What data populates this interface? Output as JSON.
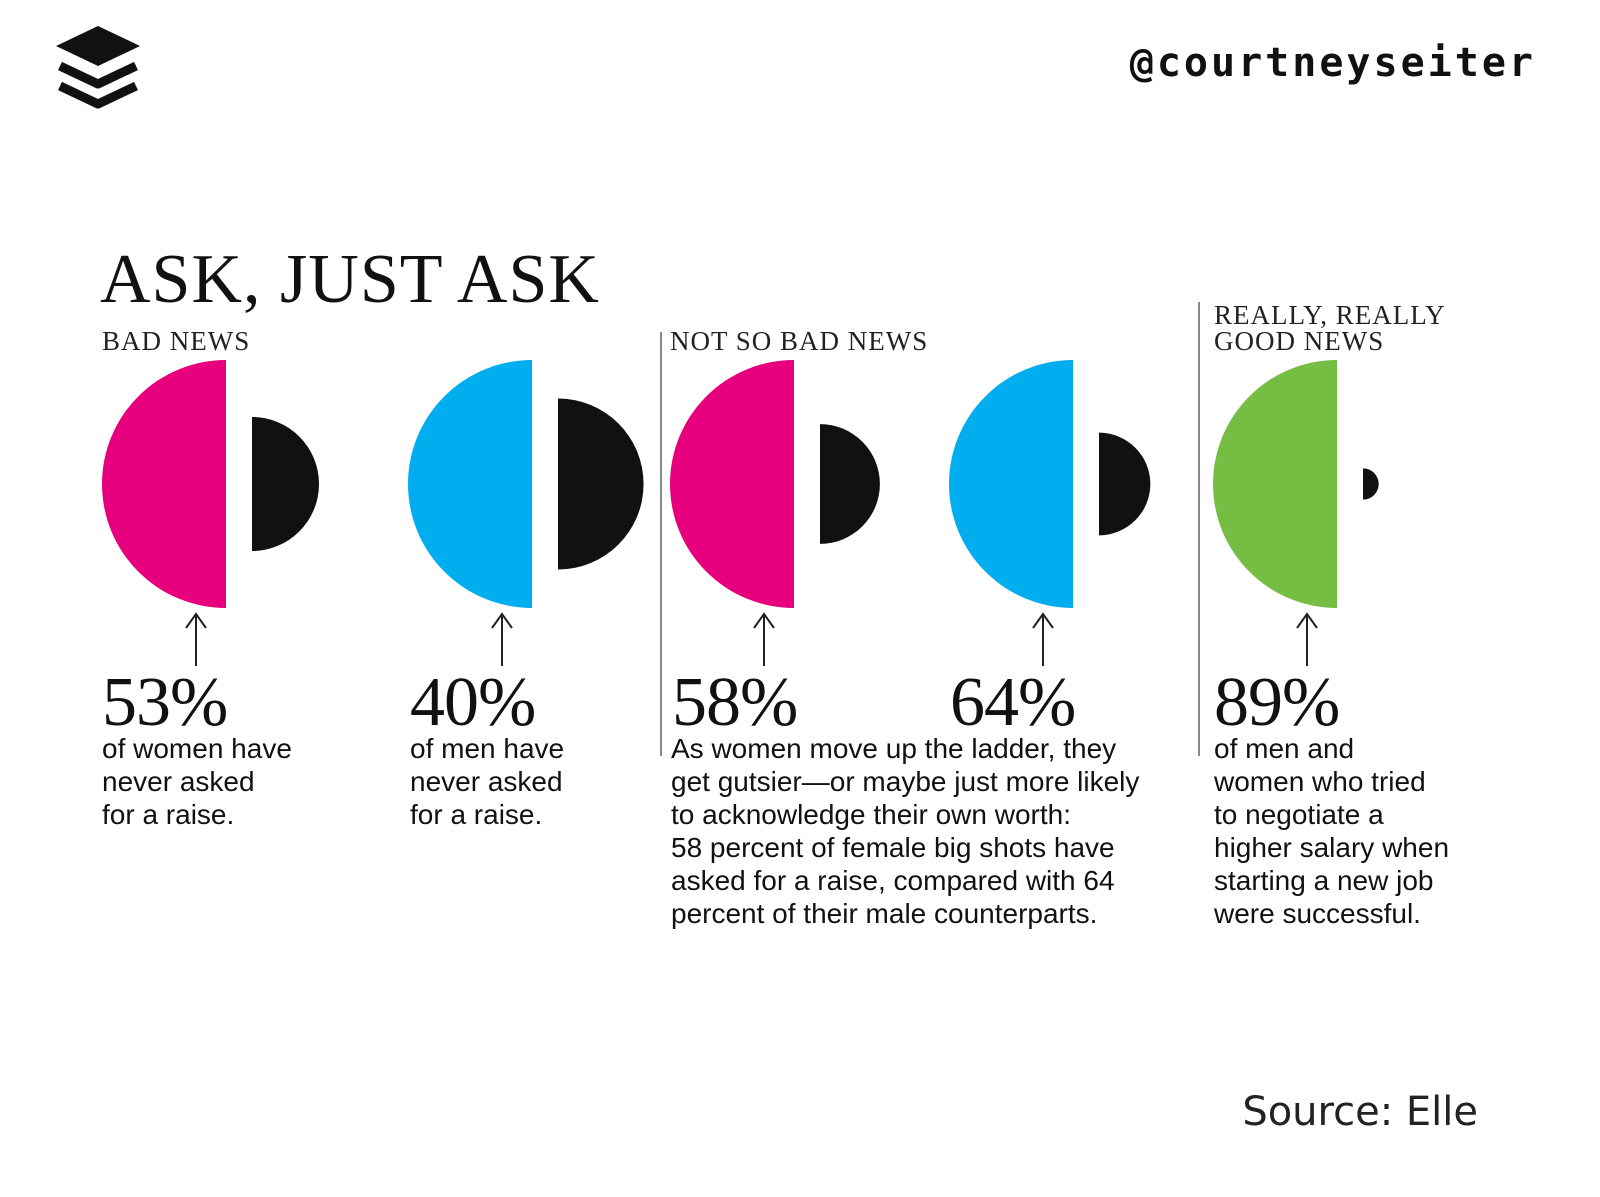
{
  "header": {
    "handle": "@courtneyseiter",
    "logo_icon": "stacked-layers-icon"
  },
  "footer": {
    "source": "Source: Elle"
  },
  "chart_data": {
    "type": "semicircle-comparison",
    "title": "ASK, JUST ASK",
    "sections": [
      {
        "label": "BAD NEWS"
      },
      {
        "label": "NOT SO BAD NEWS"
      },
      {
        "label": "REALLY, REALLY GOOD NEWS"
      }
    ],
    "items": [
      {
        "section": 0,
        "value": 53,
        "label": "53%",
        "color": "#e6007e",
        "description": "of women have\nnever asked\nfor a raise."
      },
      {
        "section": 0,
        "value": 40,
        "label": "40%",
        "color": "#00aeef",
        "description": "of men have\nnever asked\nfor a raise."
      },
      {
        "section": 1,
        "value": 58,
        "label": "58%",
        "color": "#e6007e"
      },
      {
        "section": 1,
        "value": 64,
        "label": "64%",
        "color": "#00aeef"
      },
      {
        "section": 2,
        "value": 89,
        "label": "89%",
        "color": "#76bd43",
        "description": "of men and\nwomen who tried\nto negotiate a\nhigher salary when\nstarting a new job\nwere successful."
      }
    ],
    "shared_description": "As women move up the ladder, they\nget gutsier—or maybe just more likely\nto acknowledge their own worth:\n58 percent of female big shots have\nasked for a raise, compared with 64\npercent of their male counterparts.",
    "remainder_color": "#111111"
  }
}
